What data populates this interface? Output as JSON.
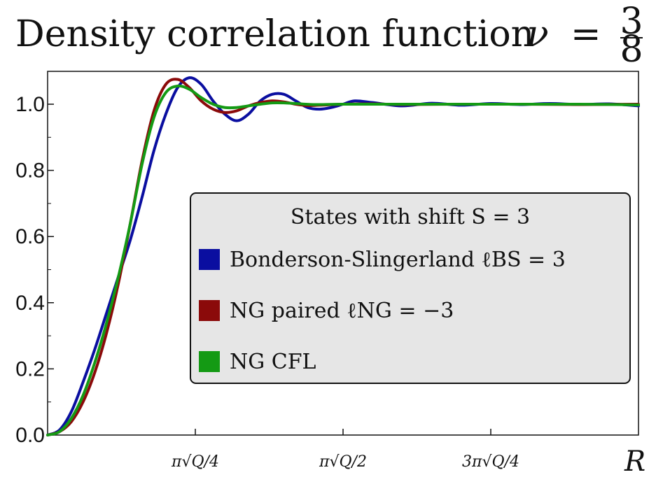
{
  "chart_data": {
    "type": "line",
    "title": "Density correlation function ν = 3/8",
    "title_main": "Density correlation function",
    "title_nu": "ν",
    "title_eq": "=",
    "title_num": "3",
    "title_den": "8",
    "xlabel": "R",
    "ylabel": "",
    "ylim": [
      0.0,
      1.1
    ],
    "xlim": [
      0,
      1
    ],
    "grid": false,
    "y_ticks": [
      {
        "value": 0.0,
        "label": "0.0"
      },
      {
        "value": 0.2,
        "label": "0.2"
      },
      {
        "value": 0.4,
        "label": "0.4"
      },
      {
        "value": 0.6,
        "label": "0.6"
      },
      {
        "value": 0.8,
        "label": "0.8"
      },
      {
        "value": 1.0,
        "label": "1.0"
      }
    ],
    "x_ticks": [
      {
        "value": 0.25,
        "label": "π√Q/4"
      },
      {
        "value": 0.5,
        "label": "π√Q/2"
      },
      {
        "value": 0.75,
        "label": "3π√Q/4"
      }
    ],
    "legend": {
      "position": "center-right",
      "title": "States with shift S = 3"
    },
    "series": [
      {
        "name": "Bonderson-Slingerland ℓBS = 3",
        "color": "#0a0ea0",
        "points": [
          [
            0,
            0
          ],
          [
            0.02,
            0.015
          ],
          [
            0.04,
            0.07
          ],
          [
            0.06,
            0.16
          ],
          [
            0.08,
            0.26
          ],
          [
            0.1,
            0.37
          ],
          [
            0.12,
            0.48
          ],
          [
            0.14,
            0.59
          ],
          [
            0.16,
            0.72
          ],
          [
            0.18,
            0.86
          ],
          [
            0.2,
            0.97
          ],
          [
            0.22,
            1.05
          ],
          [
            0.24,
            1.08
          ],
          [
            0.26,
            1.06
          ],
          [
            0.28,
            1.01
          ],
          [
            0.3,
            0.97
          ],
          [
            0.32,
            0.95
          ],
          [
            0.34,
            0.97
          ],
          [
            0.36,
            1.01
          ],
          [
            0.38,
            1.03
          ],
          [
            0.4,
            1.03
          ],
          [
            0.42,
            1.01
          ],
          [
            0.44,
            0.99
          ],
          [
            0.46,
            0.985
          ],
          [
            0.48,
            0.99
          ],
          [
            0.5,
            1.0
          ],
          [
            0.52,
            1.01
          ],
          [
            0.55,
            1.005
          ],
          [
            0.6,
            0.995
          ],
          [
            0.65,
            1.003
          ],
          [
            0.7,
            0.997
          ],
          [
            0.75,
            1.002
          ],
          [
            0.8,
            0.999
          ],
          [
            0.85,
            1.002
          ],
          [
            0.9,
            0.999
          ],
          [
            0.95,
            1.001
          ],
          [
            1.0,
            0.995
          ]
        ]
      },
      {
        "name": "NG paired ℓNG = −3",
        "color": "#8b0a0a",
        "points": [
          [
            0,
            0
          ],
          [
            0.02,
            0.01
          ],
          [
            0.04,
            0.04
          ],
          [
            0.06,
            0.1
          ],
          [
            0.08,
            0.19
          ],
          [
            0.1,
            0.31
          ],
          [
            0.12,
            0.46
          ],
          [
            0.14,
            0.64
          ],
          [
            0.16,
            0.83
          ],
          [
            0.18,
            0.98
          ],
          [
            0.2,
            1.06
          ],
          [
            0.22,
            1.075
          ],
          [
            0.24,
            1.05
          ],
          [
            0.26,
            1.01
          ],
          [
            0.28,
            0.985
          ],
          [
            0.3,
            0.975
          ],
          [
            0.32,
            0.98
          ],
          [
            0.34,
            0.995
          ],
          [
            0.36,
            1.005
          ],
          [
            0.38,
            1.01
          ],
          [
            0.4,
            1.007
          ],
          [
            0.42,
            1.0
          ],
          [
            0.44,
            0.996
          ],
          [
            0.46,
            0.997
          ],
          [
            0.5,
            1.0
          ],
          [
            0.55,
            1.001
          ],
          [
            0.6,
            0.999
          ],
          [
            0.7,
            1.0
          ],
          [
            0.8,
            1.0
          ],
          [
            0.9,
            0.999
          ],
          [
            1.0,
            1.0
          ]
        ]
      },
      {
        "name": "NG CFL",
        "color": "#149a14",
        "points": [
          [
            0,
            0
          ],
          [
            0.02,
            0.01
          ],
          [
            0.04,
            0.05
          ],
          [
            0.06,
            0.12
          ],
          [
            0.08,
            0.22
          ],
          [
            0.1,
            0.34
          ],
          [
            0.12,
            0.48
          ],
          [
            0.14,
            0.64
          ],
          [
            0.16,
            0.82
          ],
          [
            0.18,
            0.96
          ],
          [
            0.2,
            1.035
          ],
          [
            0.22,
            1.055
          ],
          [
            0.24,
            1.045
          ],
          [
            0.26,
            1.02
          ],
          [
            0.28,
            1.0
          ],
          [
            0.3,
            0.99
          ],
          [
            0.32,
            0.99
          ],
          [
            0.34,
            0.995
          ],
          [
            0.36,
            1.0
          ],
          [
            0.38,
            1.004
          ],
          [
            0.4,
            1.004
          ],
          [
            0.42,
            1.002
          ],
          [
            0.45,
            0.999
          ],
          [
            0.5,
            1.0
          ],
          [
            0.6,
            1.0
          ],
          [
            0.7,
            1.0
          ],
          [
            0.8,
            1.0
          ],
          [
            0.9,
            1.0
          ],
          [
            1.0,
            0.998
          ]
        ]
      }
    ]
  }
}
